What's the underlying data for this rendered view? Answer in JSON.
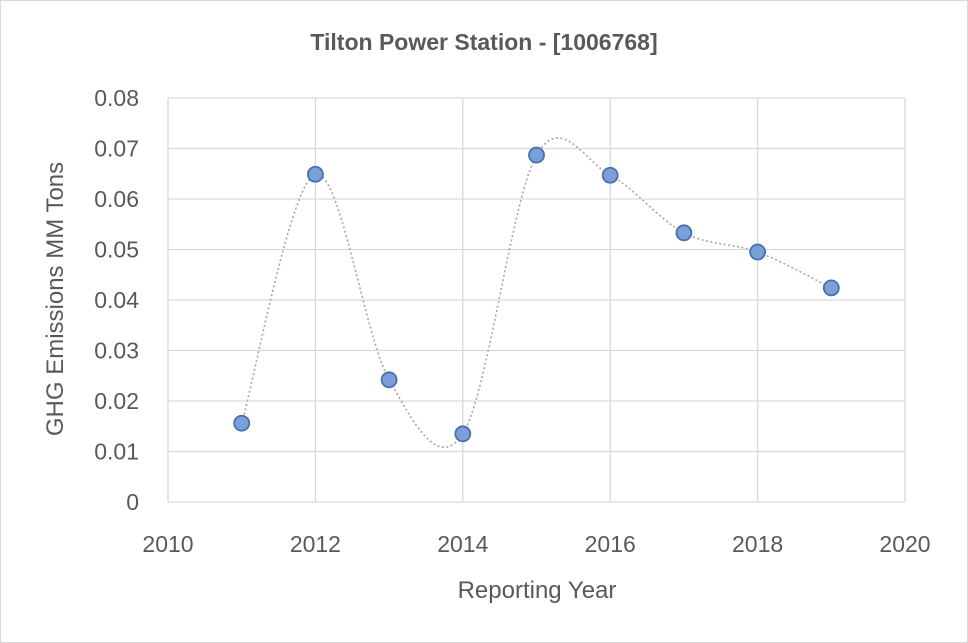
{
  "chart_data": {
    "type": "scatter",
    "title": "Tilton Power Station - [1006768]",
    "xlabel": "Reporting Year",
    "ylabel": "GHG Emissions MM Tons",
    "xlim": [
      2010,
      2020
    ],
    "ylim": [
      0,
      0.08
    ],
    "x_ticks": [
      "2010",
      "2012",
      "2014",
      "2016",
      "2018",
      "2020"
    ],
    "y_ticks": [
      "0",
      "0.01",
      "0.02",
      "0.03",
      "0.04",
      "0.05",
      "0.06",
      "0.07",
      "0.08"
    ],
    "x_tick_values": [
      2010,
      2012,
      2014,
      2016,
      2018,
      2020
    ],
    "y_tick_values": [
      0,
      0.01,
      0.02,
      0.03,
      0.04,
      0.05,
      0.06,
      0.07,
      0.08
    ],
    "grid": true,
    "smoothed_line": true,
    "marker_color": "#7b9fd8",
    "marker_edge_color": "#4a6fb0",
    "line_color": "#a6a6a6",
    "series": [
      {
        "x": [
          2011,
          2012,
          2013,
          2014,
          2015,
          2016,
          2017,
          2018,
          2019
        ],
        "y": [
          0.0156,
          0.0649,
          0.0242,
          0.0135,
          0.0687,
          0.0647,
          0.0533,
          0.0495,
          0.0424
        ]
      }
    ]
  }
}
